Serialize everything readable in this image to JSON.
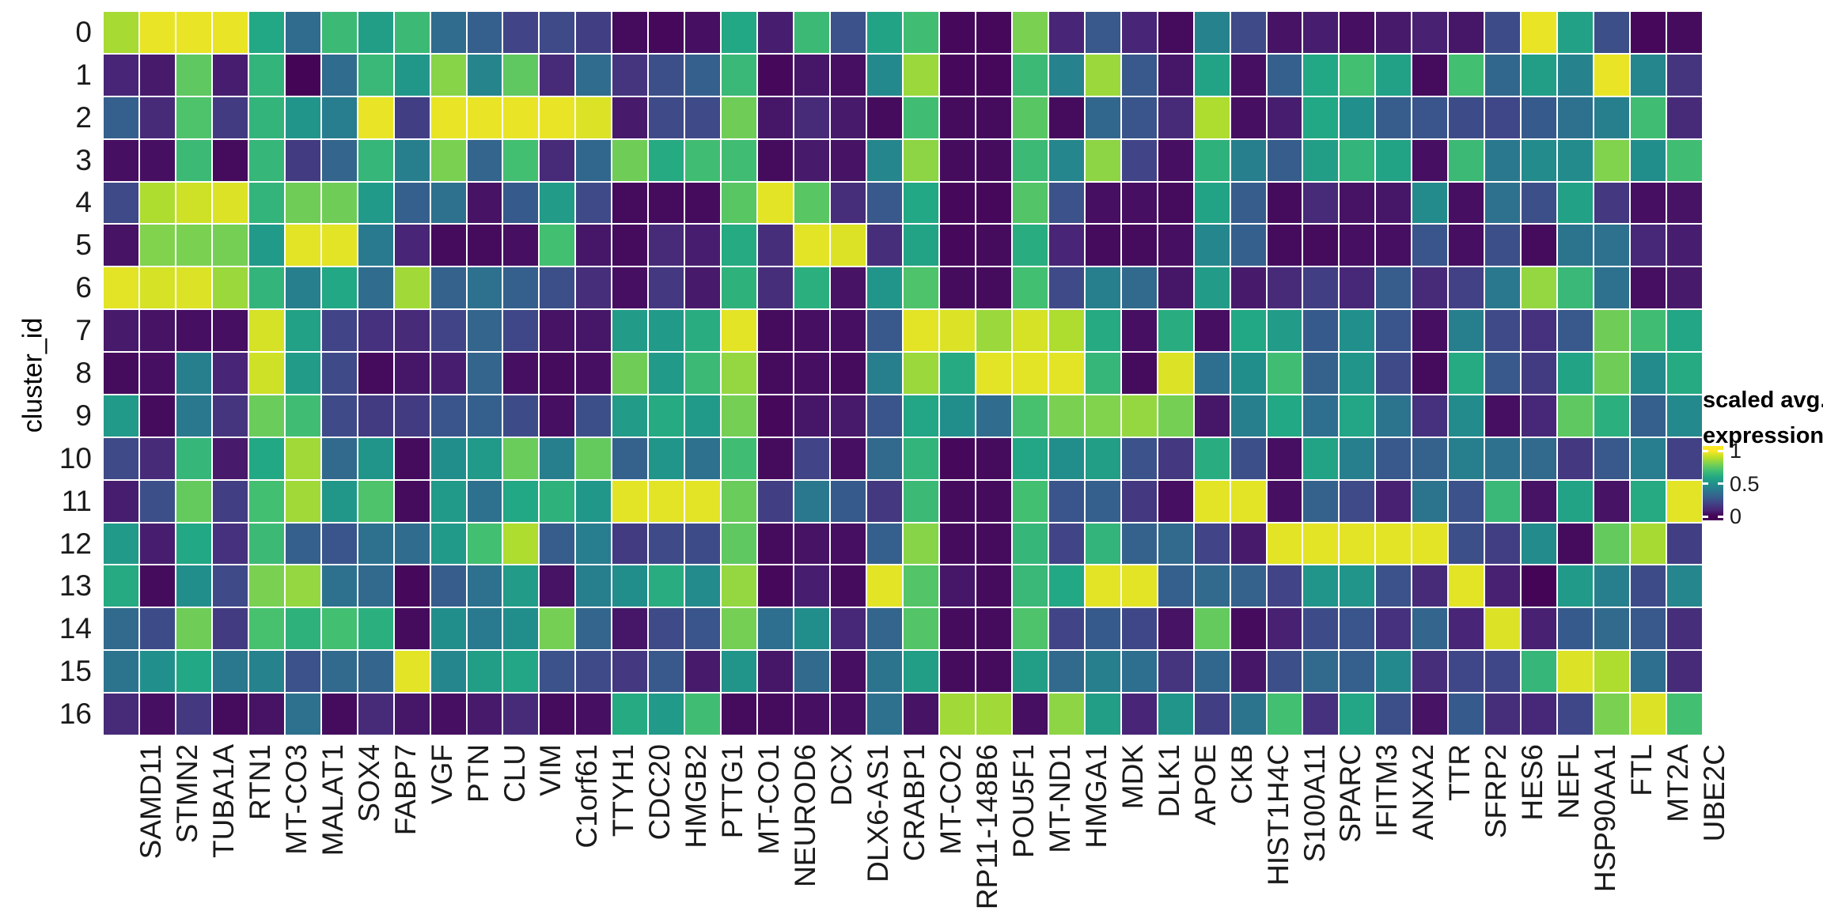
{
  "figure": {
    "background": "#ffffff"
  },
  "y_axis": {
    "title": "cluster_id"
  },
  "legend": {
    "title_lines": [
      "scaled avg.",
      "expression"
    ],
    "tick_labels": [
      "1",
      "0.5",
      "0"
    ],
    "tick_values": [
      1,
      0.5,
      0
    ]
  },
  "colors": {
    "grid_gap": "#ffffff",
    "viridis_stops": [
      "#440154",
      "#482576",
      "#414487",
      "#35608d",
      "#2a788e",
      "#21908c",
      "#22a884",
      "#43bf71",
      "#7ad151",
      "#bbdf27",
      "#fde725"
    ]
  },
  "chart_data": {
    "type": "heatmap",
    "title": "",
    "xlabel": "",
    "ylabel": "cluster_id",
    "legend_title": "scaled avg. expression",
    "palette": "viridis",
    "value_range": [
      0,
      1
    ],
    "scale_ticks": [
      1,
      0.5,
      0
    ],
    "rows": [
      "0",
      "1",
      "2",
      "3",
      "4",
      "5",
      "6",
      "7",
      "8",
      "9",
      "10",
      "11",
      "12",
      "13",
      "14",
      "15",
      "16"
    ],
    "columns": [
      "SAMD11",
      "STMN2",
      "TUBA1A",
      "RTN1",
      "MT-CO3",
      "MALAT1",
      "SOX4",
      "FABP7",
      "VGF",
      "PTN",
      "CLU",
      "VIM",
      "C1orf61",
      "TTYH1",
      "CDC20",
      "HMGB2",
      "PTTG1",
      "MT-CO1",
      "NEUROD6",
      "DCX",
      "DLX6-AS1",
      "CRABP1",
      "MT-CO2",
      "RP11-148B6",
      "POU5F1",
      "MT-ND1",
      "HMGA1",
      "MDK",
      "DLK1",
      "APOE",
      "CKB",
      "HIST1H4C",
      "S100A11",
      "SPARC",
      "IFITM3",
      "ANXA2",
      "TTR",
      "SFRP2",
      "HES6",
      "NEFL",
      "HSP90AA1",
      "FTL",
      "MT2A",
      "UBE2C"
    ],
    "values": [
      [
        0.87,
        0.97,
        0.97,
        0.97,
        0.6,
        0.35,
        0.68,
        0.56,
        0.68,
        0.35,
        0.3,
        0.2,
        0.22,
        0.18,
        0.03,
        0.02,
        0.04,
        0.6,
        0.08,
        0.68,
        0.25,
        0.58,
        0.69,
        0.02,
        0.02,
        0.8,
        0.1,
        0.27,
        0.1,
        0.03,
        0.44,
        0.22,
        0.05,
        0.08,
        0.04,
        0.07,
        0.09,
        0.06,
        0.23,
        0.97,
        0.57,
        0.24,
        0.02,
        0.03
      ],
      [
        0.1,
        0.07,
        0.75,
        0.08,
        0.65,
        0.01,
        0.35,
        0.67,
        0.53,
        0.82,
        0.45,
        0.75,
        0.12,
        0.35,
        0.15,
        0.24,
        0.3,
        0.67,
        0.02,
        0.06,
        0.04,
        0.47,
        0.85,
        0.02,
        0.02,
        0.68,
        0.44,
        0.85,
        0.27,
        0.06,
        0.58,
        0.04,
        0.3,
        0.6,
        0.7,
        0.57,
        0.03,
        0.7,
        0.33,
        0.56,
        0.44,
        0.97,
        0.46,
        0.15
      ],
      [
        0.3,
        0.12,
        0.72,
        0.17,
        0.65,
        0.52,
        0.42,
        0.97,
        0.18,
        0.97,
        0.97,
        0.97,
        0.97,
        0.95,
        0.07,
        0.22,
        0.22,
        0.78,
        0.06,
        0.12,
        0.07,
        0.03,
        0.69,
        0.03,
        0.03,
        0.74,
        0.03,
        0.33,
        0.26,
        0.12,
        0.88,
        0.04,
        0.08,
        0.6,
        0.5,
        0.29,
        0.26,
        0.23,
        0.21,
        0.28,
        0.37,
        0.43,
        0.69,
        0.12
      ],
      [
        0.04,
        0.04,
        0.68,
        0.03,
        0.66,
        0.17,
        0.32,
        0.66,
        0.43,
        0.8,
        0.32,
        0.7,
        0.12,
        0.33,
        0.78,
        0.61,
        0.69,
        0.69,
        0.03,
        0.07,
        0.05,
        0.46,
        0.83,
        0.03,
        0.03,
        0.68,
        0.46,
        0.83,
        0.2,
        0.04,
        0.64,
        0.43,
        0.29,
        0.56,
        0.65,
        0.58,
        0.04,
        0.68,
        0.4,
        0.48,
        0.48,
        0.81,
        0.49,
        0.69
      ],
      [
        0.22,
        0.88,
        0.93,
        0.95,
        0.65,
        0.78,
        0.78,
        0.54,
        0.3,
        0.37,
        0.05,
        0.28,
        0.55,
        0.22,
        0.03,
        0.03,
        0.03,
        0.74,
        0.96,
        0.74,
        0.13,
        0.27,
        0.6,
        0.02,
        0.02,
        0.73,
        0.25,
        0.04,
        0.04,
        0.03,
        0.58,
        0.29,
        0.03,
        0.12,
        0.05,
        0.06,
        0.48,
        0.04,
        0.37,
        0.24,
        0.57,
        0.16,
        0.04,
        0.05
      ],
      [
        0.05,
        0.81,
        0.8,
        0.79,
        0.54,
        0.96,
        0.96,
        0.41,
        0.1,
        0.03,
        0.03,
        0.04,
        0.7,
        0.06,
        0.03,
        0.12,
        0.08,
        0.61,
        0.13,
        0.96,
        0.95,
        0.13,
        0.58,
        0.02,
        0.03,
        0.62,
        0.1,
        0.03,
        0.03,
        0.04,
        0.46,
        0.3,
        0.03,
        0.03,
        0.04,
        0.04,
        0.26,
        0.04,
        0.24,
        0.03,
        0.38,
        0.37,
        0.11,
        0.08
      ],
      [
        0.96,
        0.94,
        0.95,
        0.85,
        0.65,
        0.43,
        0.6,
        0.35,
        0.86,
        0.31,
        0.37,
        0.3,
        0.24,
        0.13,
        0.04,
        0.16,
        0.07,
        0.64,
        0.13,
        0.63,
        0.05,
        0.52,
        0.72,
        0.03,
        0.03,
        0.7,
        0.22,
        0.43,
        0.34,
        0.06,
        0.55,
        0.07,
        0.12,
        0.18,
        0.11,
        0.29,
        0.12,
        0.19,
        0.4,
        0.84,
        0.67,
        0.37,
        0.04,
        0.07
      ],
      [
        0.07,
        0.05,
        0.04,
        0.04,
        0.94,
        0.57,
        0.2,
        0.14,
        0.12,
        0.2,
        0.32,
        0.21,
        0.05,
        0.06,
        0.55,
        0.54,
        0.62,
        0.96,
        0.03,
        0.04,
        0.04,
        0.27,
        0.96,
        0.95,
        0.85,
        0.94,
        0.88,
        0.61,
        0.04,
        0.62,
        0.04,
        0.6,
        0.55,
        0.28,
        0.5,
        0.26,
        0.04,
        0.43,
        0.22,
        0.14,
        0.27,
        0.78,
        0.69,
        0.59
      ],
      [
        0.03,
        0.04,
        0.43,
        0.1,
        0.93,
        0.55,
        0.22,
        0.03,
        0.06,
        0.08,
        0.32,
        0.04,
        0.03,
        0.04,
        0.78,
        0.54,
        0.68,
        0.84,
        0.03,
        0.04,
        0.03,
        0.43,
        0.85,
        0.61,
        0.96,
        0.96,
        0.96,
        0.66,
        0.03,
        0.95,
        0.36,
        0.49,
        0.69,
        0.31,
        0.52,
        0.22,
        0.03,
        0.61,
        0.27,
        0.17,
        0.58,
        0.78,
        0.48,
        0.61
      ],
      [
        0.54,
        0.03,
        0.4,
        0.15,
        0.77,
        0.69,
        0.22,
        0.17,
        0.17,
        0.26,
        0.3,
        0.23,
        0.04,
        0.24,
        0.55,
        0.61,
        0.54,
        0.79,
        0.02,
        0.06,
        0.07,
        0.26,
        0.59,
        0.49,
        0.35,
        0.71,
        0.8,
        0.81,
        0.84,
        0.79,
        0.06,
        0.43,
        0.6,
        0.36,
        0.59,
        0.38,
        0.14,
        0.48,
        0.04,
        0.11,
        0.75,
        0.63,
        0.3,
        0.47
      ],
      [
        0.22,
        0.12,
        0.66,
        0.07,
        0.6,
        0.86,
        0.34,
        0.52,
        0.03,
        0.49,
        0.54,
        0.77,
        0.43,
        0.76,
        0.31,
        0.52,
        0.37,
        0.69,
        0.03,
        0.2,
        0.04,
        0.34,
        0.65,
        0.02,
        0.03,
        0.59,
        0.49,
        0.56,
        0.25,
        0.16,
        0.62,
        0.24,
        0.04,
        0.58,
        0.43,
        0.27,
        0.31,
        0.43,
        0.37,
        0.34,
        0.16,
        0.27,
        0.42,
        0.19
      ],
      [
        0.08,
        0.24,
        0.76,
        0.18,
        0.7,
        0.86,
        0.53,
        0.72,
        0.03,
        0.54,
        0.37,
        0.6,
        0.64,
        0.53,
        0.96,
        0.96,
        0.96,
        0.77,
        0.18,
        0.4,
        0.28,
        0.16,
        0.68,
        0.03,
        0.03,
        0.7,
        0.26,
        0.3,
        0.16,
        0.04,
        0.96,
        0.96,
        0.04,
        0.31,
        0.22,
        0.09,
        0.38,
        0.25,
        0.67,
        0.05,
        0.58,
        0.05,
        0.61,
        0.96
      ],
      [
        0.54,
        0.08,
        0.6,
        0.14,
        0.68,
        0.3,
        0.26,
        0.37,
        0.35,
        0.54,
        0.7,
        0.88,
        0.29,
        0.42,
        0.17,
        0.22,
        0.23,
        0.75,
        0.03,
        0.05,
        0.04,
        0.3,
        0.82,
        0.03,
        0.03,
        0.66,
        0.2,
        0.65,
        0.31,
        0.34,
        0.2,
        0.07,
        0.96,
        0.96,
        0.96,
        0.96,
        0.96,
        0.24,
        0.18,
        0.48,
        0.03,
        0.76,
        0.87,
        0.18
      ],
      [
        0.61,
        0.03,
        0.49,
        0.22,
        0.8,
        0.84,
        0.37,
        0.34,
        0.02,
        0.29,
        0.37,
        0.55,
        0.05,
        0.43,
        0.49,
        0.62,
        0.48,
        0.84,
        0.02,
        0.08,
        0.03,
        0.96,
        0.73,
        0.06,
        0.03,
        0.67,
        0.6,
        0.96,
        0.96,
        0.3,
        0.34,
        0.31,
        0.2,
        0.52,
        0.52,
        0.25,
        0.12,
        0.96,
        0.09,
        0.01,
        0.54,
        0.43,
        0.23,
        0.46
      ],
      [
        0.34,
        0.23,
        0.78,
        0.17,
        0.71,
        0.64,
        0.7,
        0.63,
        0.03,
        0.49,
        0.41,
        0.49,
        0.79,
        0.32,
        0.06,
        0.22,
        0.26,
        0.79,
        0.36,
        0.49,
        0.11,
        0.32,
        0.73,
        0.03,
        0.03,
        0.72,
        0.2,
        0.28,
        0.21,
        0.05,
        0.76,
        0.03,
        0.09,
        0.23,
        0.26,
        0.14,
        0.32,
        0.1,
        0.95,
        0.09,
        0.28,
        0.34,
        0.27,
        0.13
      ],
      [
        0.38,
        0.5,
        0.6,
        0.4,
        0.44,
        0.25,
        0.34,
        0.32,
        0.96,
        0.46,
        0.56,
        0.59,
        0.25,
        0.22,
        0.16,
        0.27,
        0.07,
        0.52,
        0.06,
        0.34,
        0.04,
        0.38,
        0.56,
        0.03,
        0.03,
        0.56,
        0.34,
        0.43,
        0.36,
        0.15,
        0.33,
        0.06,
        0.24,
        0.34,
        0.3,
        0.47,
        0.13,
        0.21,
        0.21,
        0.66,
        0.95,
        0.88,
        0.36,
        0.12
      ],
      [
        0.12,
        0.04,
        0.16,
        0.03,
        0.05,
        0.37,
        0.03,
        0.12,
        0.06,
        0.04,
        0.07,
        0.12,
        0.03,
        0.04,
        0.61,
        0.54,
        0.69,
        0.03,
        0.03,
        0.04,
        0.04,
        0.37,
        0.05,
        0.86,
        0.86,
        0.04,
        0.83,
        0.56,
        0.1,
        0.52,
        0.18,
        0.38,
        0.7,
        0.14,
        0.59,
        0.24,
        0.05,
        0.28,
        0.13,
        0.11,
        0.21,
        0.8,
        0.95,
        0.7
      ]
    ]
  }
}
